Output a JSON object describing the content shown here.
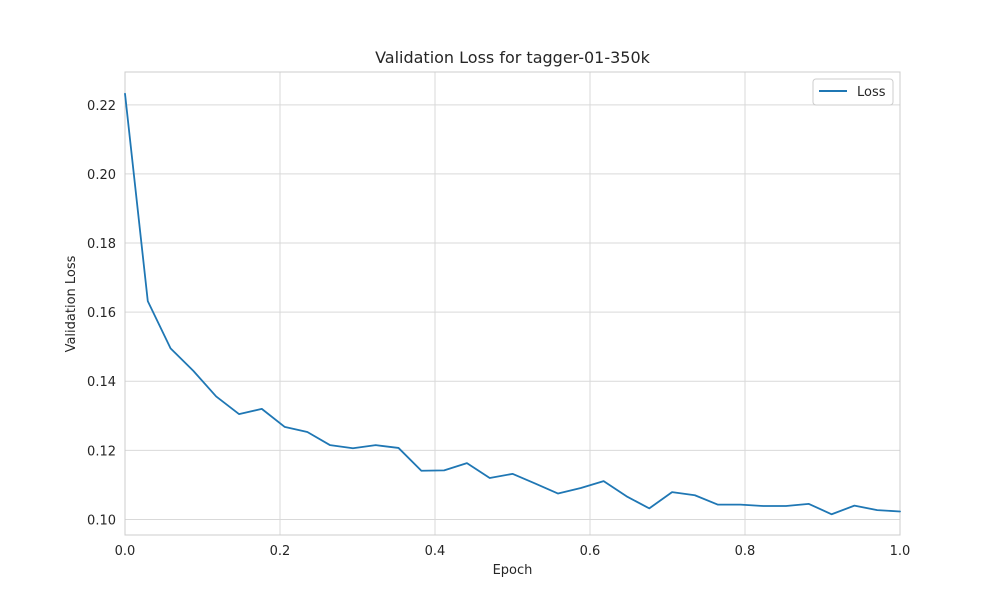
{
  "chart_data": {
    "type": "line",
    "title": "Validation Loss for tagger-01-350k",
    "xlabel": "Epoch",
    "ylabel": "Validation Loss",
    "xlim": [
      0.0,
      1.0
    ],
    "ylim": [
      0.0955,
      0.2295
    ],
    "xticks": [
      "0.0",
      "0.2",
      "0.4",
      "0.6",
      "0.8",
      "1.0"
    ],
    "xtick_values": [
      0.0,
      0.2,
      0.4,
      0.6,
      0.8,
      1.0
    ],
    "yticks": [
      "0.10",
      "0.12",
      "0.14",
      "0.16",
      "0.18",
      "0.20",
      "0.22"
    ],
    "ytick_values": [
      0.1,
      0.12,
      0.14,
      0.16,
      0.18,
      0.2,
      0.22
    ],
    "grid": true,
    "legend_position": "top-right",
    "series": [
      {
        "name": "Loss",
        "color": "#1f77b4",
        "x": [
          0.0,
          0.0294,
          0.0588,
          0.0882,
          0.1176,
          0.1471,
          0.1765,
          0.2059,
          0.2353,
          0.2647,
          0.2941,
          0.3235,
          0.3529,
          0.3824,
          0.4118,
          0.4412,
          0.4706,
          0.5,
          0.5294,
          0.5588,
          0.5882,
          0.6176,
          0.6471,
          0.6765,
          0.7059,
          0.7353,
          0.7647,
          0.7941,
          0.8235,
          0.8529,
          0.8824,
          0.9118,
          0.9412,
          0.9706,
          1.0
        ],
        "y": [
          0.2232,
          0.1632,
          0.1495,
          0.143,
          0.1356,
          0.1305,
          0.132,
          0.1268,
          0.1253,
          0.1215,
          0.1206,
          0.1215,
          0.1207,
          0.1141,
          0.1142,
          0.1163,
          0.112,
          0.1132,
          0.1104,
          0.1075,
          0.1091,
          0.1111,
          0.1067,
          0.1032,
          0.1079,
          0.107,
          0.1043,
          0.1043,
          0.1039,
          0.1039,
          0.1045,
          0.1015,
          0.104,
          0.1027,
          0.1023
        ]
      }
    ]
  }
}
